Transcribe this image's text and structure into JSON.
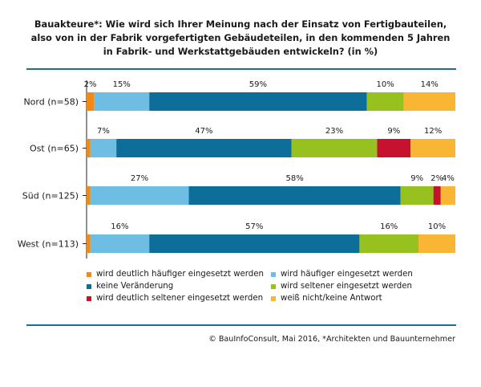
{
  "title_lines": [
    "Bauakteure*: Wie wird sich Ihrer Meinung nach der Einsatz von Fertigbauteilen,",
    "also von in der Fabrik vorgefertigten Gebäudeteilen, in den kommenden 5 Jahren",
    "in Fabrik- und Werkstattgebäuden entwickeln? (in %)"
  ],
  "chart_data": {
    "type": "bar",
    "orientation": "horizontal",
    "stacked": true,
    "normalized": true,
    "xlim": [
      0,
      100
    ],
    "categories": [
      "Nord (n=58)",
      "Ost (n=65)",
      "Süd (n=125)",
      "West (n=113)"
    ],
    "series": [
      {
        "name": "wird deutlich häufiger eingesetzt werden",
        "color": "#f08a14",
        "values": [
          2,
          1,
          1,
          1
        ],
        "labels": [
          "2%",
          "",
          "",
          ""
        ]
      },
      {
        "name": "wird häufiger eingesetzt werden",
        "color": "#6ebde3",
        "values": [
          15,
          7,
          27,
          16
        ],
        "labels": [
          "15%",
          "7%",
          "27%",
          "16%"
        ]
      },
      {
        "name": "keine Veränderung",
        "color": "#0d6e99",
        "values": [
          59,
          47,
          58,
          57
        ],
        "labels": [
          "59%",
          "47%",
          "58%",
          "57%"
        ]
      },
      {
        "name": "wird seltener eingesetzt werden",
        "color": "#97c11f",
        "values": [
          10,
          23,
          9,
          16
        ],
        "labels": [
          "10%",
          "23%",
          "9%",
          "16%"
        ]
      },
      {
        "name": "wird deutlich seltener eingesetzt werden",
        "color": "#c6122f",
        "values": [
          0,
          9,
          2,
          0
        ],
        "labels": [
          "",
          "9%",
          "2%",
          ""
        ]
      },
      {
        "name": "weiß nicht/keine Antwort",
        "color": "#f9b534",
        "values": [
          14,
          12,
          4,
          10
        ],
        "labels": [
          "14%",
          "12%",
          "4%",
          "10%"
        ]
      }
    ],
    "grid": false,
    "legend_position": "bottom"
  },
  "footer": "© BauInfoConsult, Mai 2016, *Architekten und Bauunternehmer"
}
